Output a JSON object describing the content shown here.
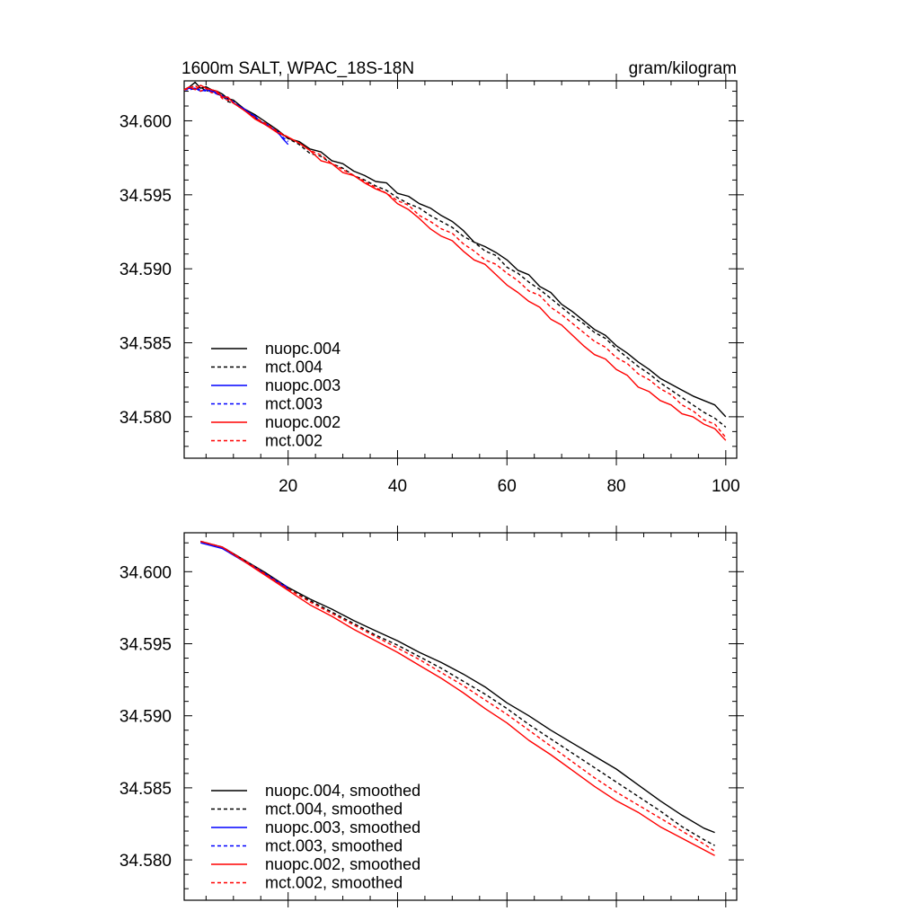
{
  "page": {
    "title_left": "1600m SALT, WPAC_18S-18N",
    "title_right": "gram/kilogram"
  },
  "colors": {
    "nuopc004": "#000000",
    "mct004": "#000000",
    "nuopc003": "#0000ff",
    "mct003": "#0000ff",
    "nuopc002": "#ff0000",
    "mct002": "#ff0000"
  },
  "chart_data": [
    {
      "type": "line",
      "title": "1600m SALT, WPAC_18S-18N",
      "units": "gram/kilogram",
      "xlabel": "",
      "ylabel": "",
      "xlim": [
        1,
        102
      ],
      "ylim": [
        34.5772,
        34.6027
      ],
      "xticks": [
        20,
        40,
        60,
        80,
        100
      ],
      "xtick_labels": [
        "20",
        "40",
        "60",
        "80",
        "100"
      ],
      "yticks": [
        34.58,
        34.585,
        34.59,
        34.595,
        34.6
      ],
      "ytick_labels": [
        "34.580",
        "34.585",
        "34.590",
        "34.595",
        "34.600"
      ],
      "legend_position": "bottom-left",
      "series": [
        {
          "key": "nuopc004",
          "name": "nuopc.004",
          "color": "#000000",
          "dash": "solid",
          "x": [
            1,
            2,
            3,
            4,
            5,
            6,
            7,
            8,
            9,
            10,
            12,
            14,
            16,
            18,
            20,
            22,
            24,
            26,
            28,
            30,
            32,
            34,
            36,
            38,
            40,
            42,
            44,
            46,
            48,
            50,
            52,
            54,
            56,
            58,
            60,
            62,
            64,
            66,
            68,
            70,
            72,
            74,
            76,
            78,
            80,
            82,
            84,
            86,
            88,
            90,
            92,
            94,
            96,
            98,
            100
          ],
          "y": [
            34.6021,
            34.6023,
            34.6026,
            34.6022,
            34.6023,
            34.6021,
            34.602,
            34.6018,
            34.6015,
            34.6014,
            34.6008,
            34.6004,
            34.5999,
            34.5994,
            34.5988,
            34.5986,
            34.5981,
            34.5979,
            34.5973,
            34.5971,
            34.5966,
            34.5963,
            34.5959,
            34.5958,
            34.5951,
            34.5949,
            34.5944,
            34.5941,
            34.5936,
            34.5932,
            34.5926,
            34.5918,
            34.5915,
            34.5911,
            34.5906,
            34.5899,
            34.5896,
            34.5888,
            34.5884,
            34.5876,
            34.5871,
            34.5865,
            34.5859,
            34.5855,
            34.5848,
            34.5843,
            34.5837,
            34.5832,
            34.5826,
            34.5822,
            34.5818,
            34.5814,
            34.5811,
            34.5808,
            34.58
          ]
        },
        {
          "key": "mct004",
          "name": "mct.004",
          "color": "#000000",
          "dash": "dashed",
          "x": [
            1,
            2,
            3,
            4,
            5,
            6,
            7,
            8,
            9,
            10,
            12,
            14,
            16,
            18,
            20,
            22,
            24,
            26,
            28,
            30,
            32,
            34,
            36,
            38,
            40,
            42,
            44,
            46,
            48,
            50,
            52,
            54,
            56,
            58,
            60,
            62,
            64,
            66,
            68,
            70,
            72,
            74,
            76,
            78,
            80,
            82,
            84,
            86,
            88,
            90,
            92,
            94,
            96,
            98,
            100
          ],
          "y": [
            34.6021,
            34.6022,
            34.6021,
            34.6023,
            34.602,
            34.6021,
            34.6018,
            34.6017,
            34.6013,
            34.6012,
            34.6007,
            34.6002,
            34.5997,
            34.5993,
            34.5988,
            34.5984,
            34.5978,
            34.5976,
            34.5971,
            34.5968,
            34.5963,
            34.596,
            34.5956,
            34.5953,
            34.5948,
            34.5944,
            34.5941,
            34.5936,
            34.5932,
            34.5928,
            34.5922,
            34.5918,
            34.5912,
            34.5909,
            34.5901,
            34.5897,
            34.5891,
            34.5886,
            34.588,
            34.5874,
            34.5868,
            34.5863,
            34.5857,
            34.5853,
            34.5846,
            34.584,
            34.5834,
            34.5829,
            34.5823,
            34.5818,
            34.5813,
            34.5808,
            34.5803,
            34.5799,
            34.5793
          ]
        },
        {
          "key": "nuopc003",
          "name": "nuopc.003",
          "color": "#0000ff",
          "dash": "solid",
          "x": [
            1,
            2,
            3,
            4,
            5,
            6,
            7,
            8,
            9,
            10,
            11,
            12,
            13,
            14,
            15,
            16,
            17,
            18,
            19,
            20
          ],
          "y": [
            34.6021,
            34.6022,
            34.6022,
            34.602,
            34.6021,
            34.602,
            34.6019,
            34.6016,
            34.6016,
            34.6012,
            34.601,
            34.6008,
            34.6005,
            34.6003,
            34.5999,
            34.5998,
            34.5995,
            34.5993,
            34.5988,
            34.5984
          ]
        },
        {
          "key": "mct003",
          "name": "mct.003",
          "color": "#0000ff",
          "dash": "dashed",
          "x": [
            1,
            2,
            3,
            4,
            5,
            6,
            7,
            8,
            9,
            10,
            11,
            12,
            13,
            14,
            15,
            16,
            17,
            18,
            19,
            20
          ],
          "y": [
            34.6021,
            34.6021,
            34.6022,
            34.6021,
            34.602,
            34.602,
            34.6018,
            34.6017,
            34.6014,
            34.6013,
            34.601,
            34.6007,
            34.6005,
            34.6002,
            34.6,
            34.5997,
            34.5995,
            34.5992,
            34.5989,
            34.5986
          ]
        },
        {
          "key": "nuopc002",
          "name": "nuopc.002",
          "color": "#ff0000",
          "dash": "solid",
          "x": [
            1,
            2,
            3,
            4,
            5,
            6,
            7,
            8,
            9,
            10,
            12,
            14,
            16,
            18,
            20,
            22,
            24,
            26,
            28,
            30,
            32,
            34,
            36,
            38,
            40,
            42,
            44,
            46,
            48,
            50,
            52,
            54,
            56,
            58,
            60,
            62,
            64,
            66,
            68,
            70,
            72,
            74,
            76,
            78,
            80,
            82,
            84,
            86,
            88,
            90,
            92,
            94,
            96,
            98,
            100
          ],
          "y": [
            34.6021,
            34.6023,
            34.6021,
            34.6024,
            34.6022,
            34.6021,
            34.602,
            34.6016,
            34.6016,
            34.6012,
            34.6007,
            34.6001,
            34.5997,
            34.5992,
            34.5989,
            34.5985,
            34.598,
            34.5973,
            34.5971,
            34.5965,
            34.5963,
            34.5958,
            34.5954,
            34.5951,
            34.5944,
            34.594,
            34.5934,
            34.5927,
            34.5922,
            34.5919,
            34.5912,
            34.5906,
            34.5903,
            34.5896,
            34.5889,
            34.5884,
            34.5878,
            34.5874,
            34.5866,
            34.5862,
            34.5855,
            34.5848,
            34.5842,
            34.5839,
            34.5832,
            34.5828,
            34.582,
            34.5817,
            34.5811,
            34.5808,
            34.5802,
            34.58,
            34.5795,
            34.5792,
            34.5784
          ]
        },
        {
          "key": "mct002",
          "name": "mct.002",
          "color": "#ff0000",
          "dash": "dashed",
          "x": [
            1,
            2,
            3,
            4,
            5,
            6,
            7,
            8,
            9,
            10,
            12,
            14,
            16,
            18,
            20,
            22,
            24,
            26,
            28,
            30,
            32,
            34,
            36,
            38,
            40,
            42,
            44,
            46,
            48,
            50,
            52,
            54,
            56,
            58,
            60,
            62,
            64,
            66,
            68,
            70,
            72,
            74,
            76,
            78,
            80,
            82,
            84,
            86,
            88,
            90,
            92,
            94,
            96,
            98,
            100
          ],
          "y": [
            34.6021,
            34.6022,
            34.6024,
            34.602,
            34.6022,
            34.6019,
            34.6019,
            34.6015,
            34.6014,
            34.6012,
            34.6007,
            34.6002,
            34.5998,
            34.5993,
            34.5989,
            34.5985,
            34.598,
            34.5977,
            34.5971,
            34.5967,
            34.5963,
            34.5959,
            34.5955,
            34.5951,
            34.5946,
            34.5943,
            34.5936,
            34.5932,
            34.5927,
            34.5924,
            34.5917,
            34.5912,
            34.5906,
            34.5903,
            34.5897,
            34.5892,
            34.5885,
            34.5882,
            34.5874,
            34.5869,
            34.5863,
            34.5857,
            34.5851,
            34.5847,
            34.584,
            34.5836,
            34.5829,
            34.5825,
            34.5819,
            34.5815,
            34.5808,
            34.5804,
            34.5798,
            34.5795,
            34.5786
          ]
        }
      ]
    },
    {
      "type": "line",
      "title": "",
      "xlabel": "",
      "ylabel": "",
      "xlim": [
        1,
        102
      ],
      "ylim": [
        34.5772,
        34.6027
      ],
      "xticks": [
        20,
        40,
        60,
        80,
        100
      ],
      "xtick_labels": [],
      "yticks": [
        34.58,
        34.585,
        34.59,
        34.595,
        34.6
      ],
      "ytick_labels": [
        "34.580",
        "34.585",
        "34.590",
        "34.595",
        "34.600"
      ],
      "legend_position": "bottom-left",
      "series": [
        {
          "key": "nuopc004",
          "name": "nuopc.004, smoothed",
          "color": "#000000",
          "dash": "solid",
          "x": [
            4,
            8,
            12,
            16,
            20,
            24,
            28,
            32,
            36,
            40,
            44,
            48,
            52,
            56,
            60,
            64,
            68,
            72,
            76,
            80,
            84,
            88,
            92,
            96,
            98
          ],
          "y": [
            34.6021,
            34.6017,
            34.6008,
            34.5999,
            34.5989,
            34.5981,
            34.5974,
            34.5966,
            34.5959,
            34.5952,
            34.5944,
            34.5937,
            34.5929,
            34.592,
            34.5909,
            34.59,
            34.589,
            34.5881,
            34.5872,
            34.5863,
            34.5852,
            34.5841,
            34.5831,
            34.5822,
            34.5819
          ]
        },
        {
          "key": "mct004",
          "name": "mct.004, smoothed",
          "color": "#000000",
          "dash": "dashed",
          "x": [
            4,
            8,
            12,
            16,
            20,
            24,
            28,
            32,
            36,
            40,
            44,
            48,
            52,
            56,
            60,
            64,
            68,
            72,
            76,
            80,
            84,
            88,
            92,
            96,
            98
          ],
          "y": [
            34.6021,
            34.6017,
            34.6008,
            34.5998,
            34.5988,
            34.598,
            34.5972,
            34.5964,
            34.5956,
            34.5949,
            34.5941,
            34.5933,
            34.5924,
            34.5915,
            34.5905,
            34.5894,
            34.5884,
            34.5874,
            34.5864,
            34.5854,
            34.5844,
            34.5834,
            34.5823,
            34.5814,
            34.581
          ]
        },
        {
          "key": "nuopc003",
          "name": "nuopc.003, smoothed",
          "color": "#0000ff",
          "dash": "solid",
          "x": [
            4,
            8,
            12,
            16,
            20
          ],
          "y": [
            34.602,
            34.6016,
            34.6007,
            34.5998,
            34.5988
          ]
        },
        {
          "key": "mct003",
          "name": "mct.003, smoothed",
          "color": "#0000ff",
          "dash": "dashed",
          "x": [
            4,
            8,
            12,
            16,
            20
          ],
          "y": [
            34.6021,
            34.6017,
            34.6008,
            34.5998,
            34.5989
          ]
        },
        {
          "key": "nuopc002",
          "name": "nuopc.002, smoothed",
          "color": "#ff0000",
          "dash": "solid",
          "x": [
            4,
            8,
            12,
            16,
            20,
            24,
            28,
            32,
            36,
            40,
            44,
            48,
            52,
            56,
            60,
            64,
            68,
            72,
            76,
            80,
            84,
            88,
            92,
            96,
            98
          ],
          "y": [
            34.6021,
            34.6017,
            34.6007,
            34.5997,
            34.5987,
            34.5977,
            34.5969,
            34.596,
            34.5952,
            34.5944,
            34.5935,
            34.5926,
            34.5916,
            34.5905,
            34.5895,
            34.5883,
            34.5873,
            34.5862,
            34.5851,
            34.5841,
            34.5833,
            34.5823,
            34.5815,
            34.5807,
            34.5803
          ]
        },
        {
          "key": "mct002",
          "name": "mct.002, smoothed",
          "color": "#ff0000",
          "dash": "dashed",
          "x": [
            4,
            8,
            12,
            16,
            20,
            24,
            28,
            32,
            36,
            40,
            44,
            48,
            52,
            56,
            60,
            64,
            68,
            72,
            76,
            80,
            84,
            88,
            92,
            96,
            98
          ],
          "y": [
            34.6021,
            34.6017,
            34.6008,
            34.5998,
            34.5988,
            34.5979,
            34.5971,
            34.5963,
            34.5955,
            34.5947,
            34.5939,
            34.593,
            34.5921,
            34.5911,
            34.5901,
            34.589,
            34.5879,
            34.5868,
            34.5857,
            34.5847,
            34.5838,
            34.5829,
            34.582,
            34.5811,
            34.5806
          ]
        }
      ]
    }
  ]
}
